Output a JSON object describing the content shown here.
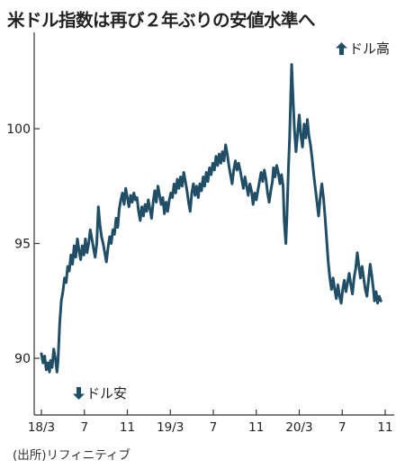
{
  "title": "米ドル指数は再び２年ぶりの安値水準へ",
  "source": "(出所)リフィニティブ",
  "annotations": {
    "up": "ドル高",
    "down": "ドル安"
  },
  "colors": {
    "line": "#1f4e66",
    "axis": "#333333",
    "text": "#222222"
  },
  "chart_data": {
    "type": "line",
    "title": "米ドル指数は再び２年ぶりの安値水準へ",
    "xlabel": "",
    "ylabel": "",
    "x_range": [
      "2018-03",
      "2020-11"
    ],
    "ylim": [
      88,
      104
    ],
    "grid": false,
    "yticks": [
      90,
      95,
      100
    ],
    "xtick_labels": [
      "18/3",
      "7",
      "11",
      "19/3",
      "7",
      "11",
      "20/3",
      "7",
      "11"
    ],
    "xtick_months": [
      0,
      4,
      8,
      12,
      16,
      20,
      24,
      28,
      32
    ],
    "series": [
      {
        "name": "",
        "points": [
          [
            0.0,
            90.2
          ],
          [
            0.15,
            89.8
          ],
          [
            0.3,
            90.1
          ],
          [
            0.45,
            89.5
          ],
          [
            0.6,
            89.8
          ],
          [
            0.75,
            89.4
          ],
          [
            0.85,
            89.9
          ],
          [
            1.0,
            89.6
          ],
          [
            1.15,
            90.4
          ],
          [
            1.3,
            90.0
          ],
          [
            1.45,
            89.4
          ],
          [
            1.55,
            89.9
          ],
          [
            1.7,
            91.5
          ],
          [
            1.85,
            92.5
          ],
          [
            2.0,
            92.9
          ],
          [
            2.15,
            93.5
          ],
          [
            2.3,
            93.3
          ],
          [
            2.45,
            94.0
          ],
          [
            2.6,
            93.8
          ],
          [
            2.75,
            94.5
          ],
          [
            2.9,
            94.1
          ],
          [
            3.05,
            94.9
          ],
          [
            3.2,
            94.4
          ],
          [
            3.35,
            95.2
          ],
          [
            3.5,
            94.7
          ],
          [
            3.65,
            94.3
          ],
          [
            3.8,
            94.9
          ],
          [
            3.95,
            94.5
          ],
          [
            4.1,
            95.2
          ],
          [
            4.25,
            94.6
          ],
          [
            4.4,
            95.0
          ],
          [
            4.55,
            95.6
          ],
          [
            4.7,
            95.2
          ],
          [
            4.85,
            94.8
          ],
          [
            5.0,
            94.4
          ],
          [
            5.15,
            95.0
          ],
          [
            5.3,
            96.6
          ],
          [
            5.45,
            95.8
          ],
          [
            5.6,
            95.3
          ],
          [
            5.75,
            95.0
          ],
          [
            5.9,
            94.6
          ],
          [
            6.05,
            94.2
          ],
          [
            6.2,
            94.8
          ],
          [
            6.35,
            95.3
          ],
          [
            6.5,
            95.0
          ],
          [
            6.65,
            95.6
          ],
          [
            6.8,
            95.4
          ],
          [
            6.95,
            96.1
          ],
          [
            7.1,
            95.7
          ],
          [
            7.25,
            96.5
          ],
          [
            7.4,
            96.9
          ],
          [
            7.55,
            97.2
          ],
          [
            7.7,
            96.7
          ],
          [
            7.85,
            97.4
          ],
          [
            8.0,
            97.0
          ],
          [
            8.15,
            96.6
          ],
          [
            8.3,
            97.1
          ],
          [
            8.45,
            96.8
          ],
          [
            8.6,
            97.2
          ],
          [
            8.75,
            96.9
          ],
          [
            8.9,
            97.0
          ],
          [
            9.05,
            96.4
          ],
          [
            9.2,
            96.0
          ],
          [
            9.35,
            96.6
          ],
          [
            9.5,
            96.2
          ],
          [
            9.65,
            96.7
          ],
          [
            9.8,
            96.4
          ],
          [
            9.95,
            96.9
          ],
          [
            10.1,
            96.5
          ],
          [
            10.25,
            96.1
          ],
          [
            10.4,
            96.8
          ],
          [
            10.55,
            97.3
          ],
          [
            10.7,
            96.8
          ],
          [
            10.85,
            97.5
          ],
          [
            11.0,
            97.1
          ],
          [
            11.15,
            96.7
          ],
          [
            11.3,
            97.0
          ],
          [
            11.45,
            96.3
          ],
          [
            11.6,
            96.8
          ],
          [
            11.75,
            96.4
          ],
          [
            11.9,
            96.9
          ],
          [
            12.05,
            97.2
          ],
          [
            12.2,
            97.0
          ],
          [
            12.35,
            97.6
          ],
          [
            12.5,
            97.2
          ],
          [
            12.65,
            97.8
          ],
          [
            12.8,
            97.4
          ],
          [
            12.95,
            97.9
          ],
          [
            13.1,
            97.5
          ],
          [
            13.25,
            98.1
          ],
          [
            13.4,
            97.7
          ],
          [
            13.55,
            97.3
          ],
          [
            13.7,
            96.8
          ],
          [
            13.85,
            96.4
          ],
          [
            14.0,
            97.2
          ],
          [
            14.15,
            97.6
          ],
          [
            14.3,
            97.1
          ],
          [
            14.45,
            97.5
          ],
          [
            14.6,
            97.0
          ],
          [
            14.75,
            97.6
          ],
          [
            14.9,
            97.3
          ],
          [
            15.05,
            97.9
          ],
          [
            15.2,
            97.5
          ],
          [
            15.35,
            98.1
          ],
          [
            15.5,
            97.7
          ],
          [
            15.65,
            98.3
          ],
          [
            15.8,
            98.0
          ],
          [
            15.95,
            98.5
          ],
          [
            16.1,
            98.2
          ],
          [
            16.25,
            98.8
          ],
          [
            16.4,
            98.4
          ],
          [
            16.55,
            98.9
          ],
          [
            16.7,
            98.5
          ],
          [
            16.85,
            99.0
          ],
          [
            17.0,
            98.6
          ],
          [
            17.15,
            99.3
          ],
          [
            17.3,
            98.9
          ],
          [
            17.45,
            98.4
          ],
          [
            17.6,
            98.0
          ],
          [
            17.75,
            97.6
          ],
          [
            17.9,
            98.2
          ],
          [
            18.05,
            98.6
          ],
          [
            18.2,
            98.2
          ],
          [
            18.35,
            98.5
          ],
          [
            18.5,
            98.2
          ],
          [
            18.65,
            97.8
          ],
          [
            18.8,
            97.4
          ],
          [
            18.95,
            97.9
          ],
          [
            19.1,
            97.5
          ],
          [
            19.25,
            97.1
          ],
          [
            19.4,
            97.6
          ],
          [
            19.55,
            97.3
          ],
          [
            19.7,
            96.7
          ],
          [
            19.85,
            97.2
          ],
          [
            20.0,
            96.9
          ],
          [
            20.15,
            97.3
          ],
          [
            20.3,
            97.7
          ],
          [
            20.45,
            98.1
          ],
          [
            20.6,
            97.7
          ],
          [
            20.75,
            98.2
          ],
          [
            20.9,
            97.8
          ],
          [
            21.05,
            97.2
          ],
          [
            21.2,
            96.8
          ],
          [
            21.35,
            97.3
          ],
          [
            21.5,
            97.7
          ],
          [
            21.6,
            98.3
          ],
          [
            21.75,
            97.9
          ],
          [
            21.9,
            98.4
          ],
          [
            22.05,
            98.1
          ],
          [
            22.2,
            97.6
          ],
          [
            22.35,
            98.0
          ],
          [
            22.5,
            97.5
          ],
          [
            22.6,
            96.0
          ],
          [
            22.75,
            95.0
          ],
          [
            22.85,
            96.2
          ],
          [
            23.0,
            98.4
          ],
          [
            23.1,
            99.6
          ],
          [
            23.2,
            101.2
          ],
          [
            23.3,
            102.8
          ],
          [
            23.4,
            101.6
          ],
          [
            23.55,
            100.0
          ],
          [
            23.7,
            99.0
          ],
          [
            23.85,
            99.8
          ],
          [
            24.0,
            100.6
          ],
          [
            24.15,
            99.7
          ],
          [
            24.3,
            99.2
          ],
          [
            24.45,
            100.2
          ],
          [
            24.6,
            99.6
          ],
          [
            24.75,
            100.4
          ],
          [
            24.9,
            99.7
          ],
          [
            25.05,
            99.3
          ],
          [
            25.2,
            98.7
          ],
          [
            25.35,
            98.0
          ],
          [
            25.5,
            97.4
          ],
          [
            25.65,
            96.8
          ],
          [
            25.8,
            96.2
          ],
          [
            25.95,
            97.0
          ],
          [
            26.1,
            97.6
          ],
          [
            26.25,
            97.0
          ],
          [
            26.4,
            96.2
          ],
          [
            26.55,
            95.2
          ],
          [
            26.7,
            94.2
          ],
          [
            26.85,
            93.5
          ],
          [
            27.0,
            93.0
          ],
          [
            27.15,
            93.5
          ],
          [
            27.3,
            93.0
          ],
          [
            27.45,
            92.6
          ],
          [
            27.6,
            93.2
          ],
          [
            27.75,
            92.7
          ],
          [
            27.9,
            92.4
          ],
          [
            28.05,
            93.0
          ],
          [
            28.2,
            93.4
          ],
          [
            28.35,
            92.9
          ],
          [
            28.5,
            93.3
          ],
          [
            28.65,
            93.7
          ],
          [
            28.8,
            93.2
          ],
          [
            28.95,
            92.8
          ],
          [
            29.1,
            93.5
          ],
          [
            29.25,
            93.9
          ],
          [
            29.4,
            94.6
          ],
          [
            29.55,
            94.0
          ],
          [
            29.7,
            93.5
          ],
          [
            29.85,
            94.0
          ],
          [
            30.0,
            93.5
          ],
          [
            30.15,
            93.0
          ],
          [
            30.3,
            92.7
          ],
          [
            30.45,
            93.4
          ],
          [
            30.6,
            94.1
          ],
          [
            30.75,
            93.6
          ],
          [
            30.9,
            93.0
          ],
          [
            31.0,
            92.5
          ],
          [
            31.15,
            92.9
          ],
          [
            31.3,
            92.4
          ],
          [
            31.45,
            92.7
          ],
          [
            31.6,
            92.5
          ]
        ]
      }
    ]
  }
}
